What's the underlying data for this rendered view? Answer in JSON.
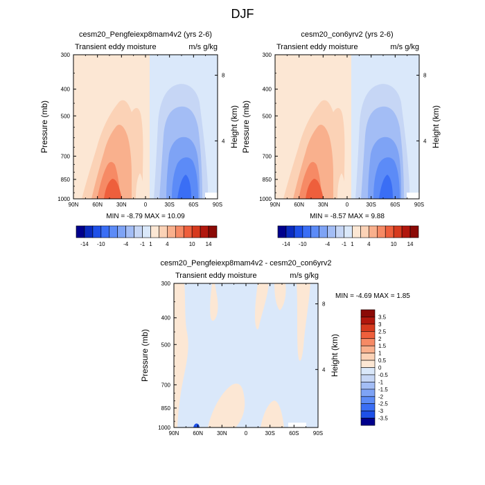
{
  "page_title": "DJF",
  "chart_data": [
    {
      "type": "heatmap",
      "title": "cesm20_Pengfeiexp8mam4v2 (yrs 2-6)",
      "left_subtitle": "Transient eddy moisture",
      "right_subtitle": "m/s g/kg",
      "ylabel": "Pressure (mb)",
      "ylabel_right": "Height (km)",
      "x_ticks": [
        "90N",
        "60N",
        "30N",
        "0",
        "30S",
        "60S",
        "90S"
      ],
      "x_tick_values": [
        90,
        60,
        30,
        0,
        -30,
        -60,
        -90
      ],
      "y_ticks": [
        "300",
        "400",
        "500",
        "700",
        "850",
        "1000"
      ],
      "y_tick_values": [
        300,
        400,
        500,
        700,
        850,
        1000
      ],
      "y_right_ticks": [
        "8",
        "4"
      ],
      "xlim": [
        90,
        -90
      ],
      "ylim": [
        300,
        1000
      ],
      "log_y": true,
      "stats": "MIN =  -8.79  MAX =  10.09",
      "contour_levels": [
        -14,
        -12,
        -10,
        -8,
        -6,
        -4,
        -2,
        -1,
        1,
        2,
        4,
        6,
        8,
        10,
        12,
        14
      ],
      "colorbar_labels": [
        "-14",
        "-10",
        "-4",
        "-1",
        "1",
        "4",
        "10",
        "14"
      ],
      "colorbar_colors": [
        "#00008c",
        "#0a2bbf",
        "#1e50e8",
        "#3a6ef5",
        "#5c8bf7",
        "#7ea3f5",
        "#a3bdf5",
        "#c6d6f5",
        "#dae8fa",
        "#fce7d4",
        "#fbd2b6",
        "#f9b08d",
        "#f68a65",
        "#ee5f3c",
        "#d63a1e",
        "#b1170d",
        "#8b0a06"
      ],
      "fields": [
        {
          "region": "positive-plateau",
          "lat_range": [
            90,
            2
          ],
          "p_range": [
            300,
            1000
          ],
          "level": 1
        },
        {
          "region": "positive-core",
          "lat_range": [
            58,
            10
          ],
          "p_range": [
            470,
            1000
          ],
          "level": 2
        },
        {
          "region": "positive-max",
          "lat_range": [
            40,
            25
          ],
          "p_range": [
            700,
            1000
          ],
          "level": 4
        },
        {
          "region": "negative-plateau",
          "lat_range": [
            2,
            -90
          ],
          "p_range": [
            300,
            1000
          ],
          "level": -1
        },
        {
          "region": "negative-core",
          "lat_range": [
            -12,
            -65
          ],
          "p_range": [
            400,
            1000
          ],
          "level": -2
        },
        {
          "region": "negative-max",
          "lat_range": [
            -32,
            -58
          ],
          "p_range": [
            640,
            1000
          ],
          "level": -6
        }
      ]
    },
    {
      "type": "heatmap",
      "title": "cesm20_con6yrv2 (yrs 2-6)",
      "left_subtitle": "Transient eddy moisture",
      "right_subtitle": "m/s g/kg",
      "ylabel": "Pressure (mb)",
      "ylabel_right": "Height (km)",
      "x_ticks": [
        "90N",
        "60N",
        "30N",
        "0",
        "30S",
        "60S",
        "90S"
      ],
      "x_tick_values": [
        90,
        60,
        30,
        0,
        -30,
        -60,
        -90
      ],
      "y_ticks": [
        "300",
        "400",
        "500",
        "700",
        "850",
        "1000"
      ],
      "y_tick_values": [
        300,
        400,
        500,
        700,
        850,
        1000
      ],
      "y_right_ticks": [
        "8",
        "4"
      ],
      "xlim": [
        90,
        -90
      ],
      "ylim": [
        300,
        1000
      ],
      "log_y": true,
      "stats": "MIN =  -8.57  MAX =   9.88",
      "contour_levels": [
        -14,
        -12,
        -10,
        -8,
        -6,
        -4,
        -2,
        -1,
        1,
        2,
        4,
        6,
        8,
        10,
        12,
        14
      ],
      "colorbar_labels": [
        "-14",
        "-10",
        "-4",
        "-1",
        "1",
        "4",
        "10",
        "14"
      ],
      "colorbar_colors": [
        "#00008c",
        "#0a2bbf",
        "#1e50e8",
        "#3a6ef5",
        "#5c8bf7",
        "#7ea3f5",
        "#a3bdf5",
        "#c6d6f5",
        "#dae8fa",
        "#fce7d4",
        "#fbd2b6",
        "#f9b08d",
        "#f68a65",
        "#ee5f3c",
        "#d63a1e",
        "#b1170d",
        "#8b0a06"
      ],
      "fields": [
        {
          "region": "positive-plateau",
          "lat_range": [
            90,
            2
          ],
          "p_range": [
            300,
            1000
          ],
          "level": 1
        },
        {
          "region": "positive-core",
          "lat_range": [
            58,
            10
          ],
          "p_range": [
            470,
            1000
          ],
          "level": 2
        },
        {
          "region": "positive-max",
          "lat_range": [
            40,
            25
          ],
          "p_range": [
            700,
            1000
          ],
          "level": 4
        },
        {
          "region": "negative-plateau",
          "lat_range": [
            2,
            -90
          ],
          "p_range": [
            300,
            1000
          ],
          "level": -1
        },
        {
          "region": "negative-core",
          "lat_range": [
            -12,
            -65
          ],
          "p_range": [
            400,
            1000
          ],
          "level": -2
        },
        {
          "region": "negative-max",
          "lat_range": [
            -32,
            -58
          ],
          "p_range": [
            640,
            1000
          ],
          "level": -6
        }
      ]
    },
    {
      "type": "heatmap",
      "title": "cesm20_Pengfeiexp8mam4v2 - cesm20_con6yrv2",
      "left_subtitle": "Transient eddy moisture",
      "right_subtitle": "m/s g/kg",
      "ylabel": "Pressure (mb)",
      "ylabel_right": "Height (km)",
      "x_ticks": [
        "90N",
        "60N",
        "30N",
        "0",
        "30S",
        "60S",
        "90S"
      ],
      "x_tick_values": [
        90,
        60,
        30,
        0,
        -30,
        -60,
        -90
      ],
      "y_ticks": [
        "300",
        "400",
        "500",
        "700",
        "850",
        "1000"
      ],
      "y_tick_values": [
        300,
        400,
        500,
        700,
        850,
        1000
      ],
      "y_right_ticks": [
        "8",
        "4"
      ],
      "xlim": [
        90,
        -90
      ],
      "ylim": [
        300,
        1000
      ],
      "log_y": true,
      "stats": "MIN =  -4.69  MAX =   1.85",
      "contour_levels": [
        -3.5,
        -3,
        -2.5,
        -2,
        -1.5,
        -1,
        -0.5,
        0,
        0.5,
        1,
        1.5,
        2,
        2.5,
        3,
        3.5
      ],
      "colorbar_labels": [
        "3.5",
        "3",
        "2.5",
        "2",
        "1.5",
        "1",
        "0.5",
        "0",
        "-0.5",
        "-1",
        "-1.5",
        "-2",
        "-2.5",
        "-3",
        "-3.5"
      ],
      "colorbar_colors": [
        "#8b0a06",
        "#b1170d",
        "#d63a1e",
        "#ee5f3c",
        "#f68a65",
        "#f9b08d",
        "#fbd2b6",
        "#fce7d4",
        "#dae8fa",
        "#c6d6f5",
        "#a3bdf5",
        "#7ea3f5",
        "#5c8bf7",
        "#3a6ef5",
        "#1e50e8",
        "#00008c"
      ],
      "fields": [
        {
          "region": "background",
          "lat_range": [
            90,
            -90
          ],
          "p_range": [
            300,
            1000
          ],
          "level": -0.25
        },
        {
          "region": "positive-patches",
          "lat_range": [
            88,
            -75
          ],
          "p_range": [
            300,
            1000
          ],
          "level": 0.25
        },
        {
          "region": "negative-min",
          "lat_range": [
            63,
            58
          ],
          "p_range": [
            960,
            1000
          ],
          "level": -3
        }
      ]
    }
  ]
}
